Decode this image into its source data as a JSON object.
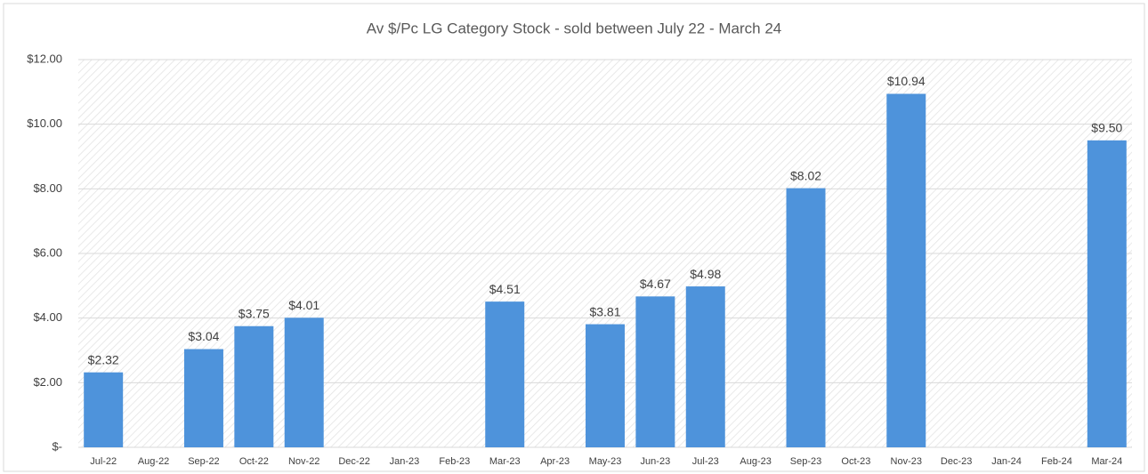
{
  "chart_data": {
    "type": "bar",
    "title": "Av $/Pc LG Category Stock - sold between July 22 - March 24",
    "categories": [
      "Jul-22",
      "Aug-22",
      "Sep-22",
      "Oct-22",
      "Nov-22",
      "Dec-22",
      "Jan-23",
      "Feb-23",
      "Mar-23",
      "Apr-23",
      "May-23",
      "Jun-23",
      "Jul-23",
      "Aug-23",
      "Sep-23",
      "Oct-23",
      "Nov-23",
      "Dec-23",
      "Jan-24",
      "Feb-24",
      "Mar-24"
    ],
    "values": [
      2.32,
      null,
      3.04,
      3.75,
      4.01,
      null,
      null,
      null,
      4.51,
      null,
      3.81,
      4.67,
      4.98,
      null,
      8.02,
      null,
      10.94,
      null,
      null,
      null,
      9.5
    ],
    "value_labels": [
      "$2.32",
      null,
      "$3.04",
      "$3.75",
      "$4.01",
      null,
      null,
      null,
      "$4.51",
      null,
      "$3.81",
      "$4.67",
      "$4.98",
      null,
      "$8.02",
      null,
      "$10.94",
      null,
      null,
      null,
      "$9.50"
    ],
    "color": "#4e93db",
    "ylim": [
      0,
      12
    ],
    "yticks": [
      {
        "value": 0,
        "label": "$-"
      },
      {
        "value": 2,
        "label": "$2.00"
      },
      {
        "value": 4,
        "label": "$4.00"
      },
      {
        "value": 6,
        "label": "$6.00"
      },
      {
        "value": 8,
        "label": "$8.00"
      },
      {
        "value": 10,
        "label": "$10.00"
      },
      {
        "value": 12,
        "label": "$12.00"
      }
    ],
    "grid": true
  }
}
